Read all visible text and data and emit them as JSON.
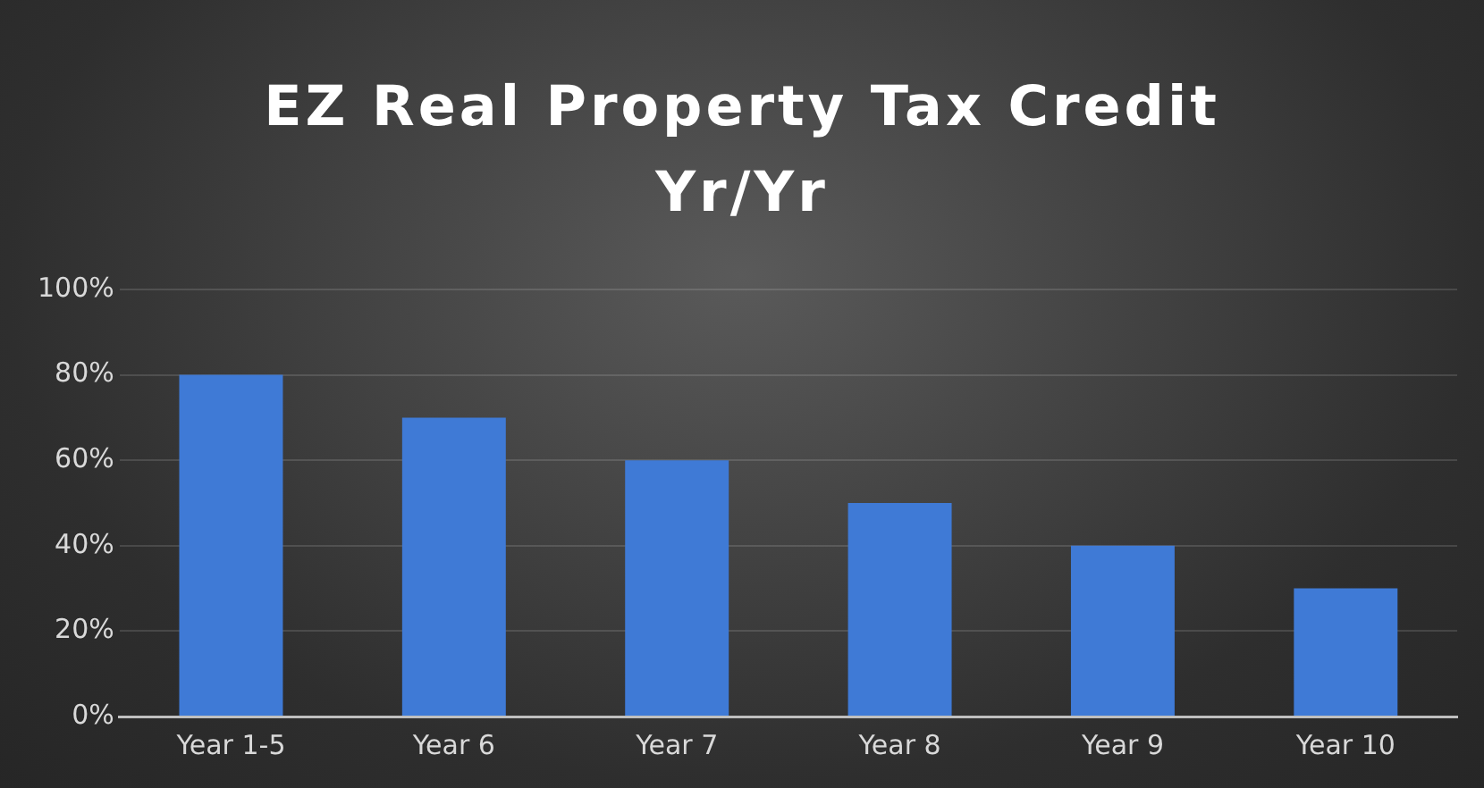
{
  "chart_data": {
    "type": "bar",
    "title": "EZ Real Property Tax Credit Yr/Yr",
    "categories": [
      "Year 1-5",
      "Year 6",
      "Year 7",
      "Year 8",
      "Year 9",
      "Year 10"
    ],
    "values": [
      80,
      70,
      60,
      50,
      40,
      30
    ],
    "color": "#3f7ad6",
    "ylim": [
      0,
      100
    ],
    "yticks": [
      {
        "value": 0,
        "label": "0%"
      },
      {
        "value": 20,
        "label": "20%"
      },
      {
        "value": 40,
        "label": "40%"
      },
      {
        "value": 60,
        "label": "60%"
      },
      {
        "value": 80,
        "label": "80%"
      },
      {
        "value": 100,
        "label": "100%"
      }
    ],
    "grid": "y"
  }
}
